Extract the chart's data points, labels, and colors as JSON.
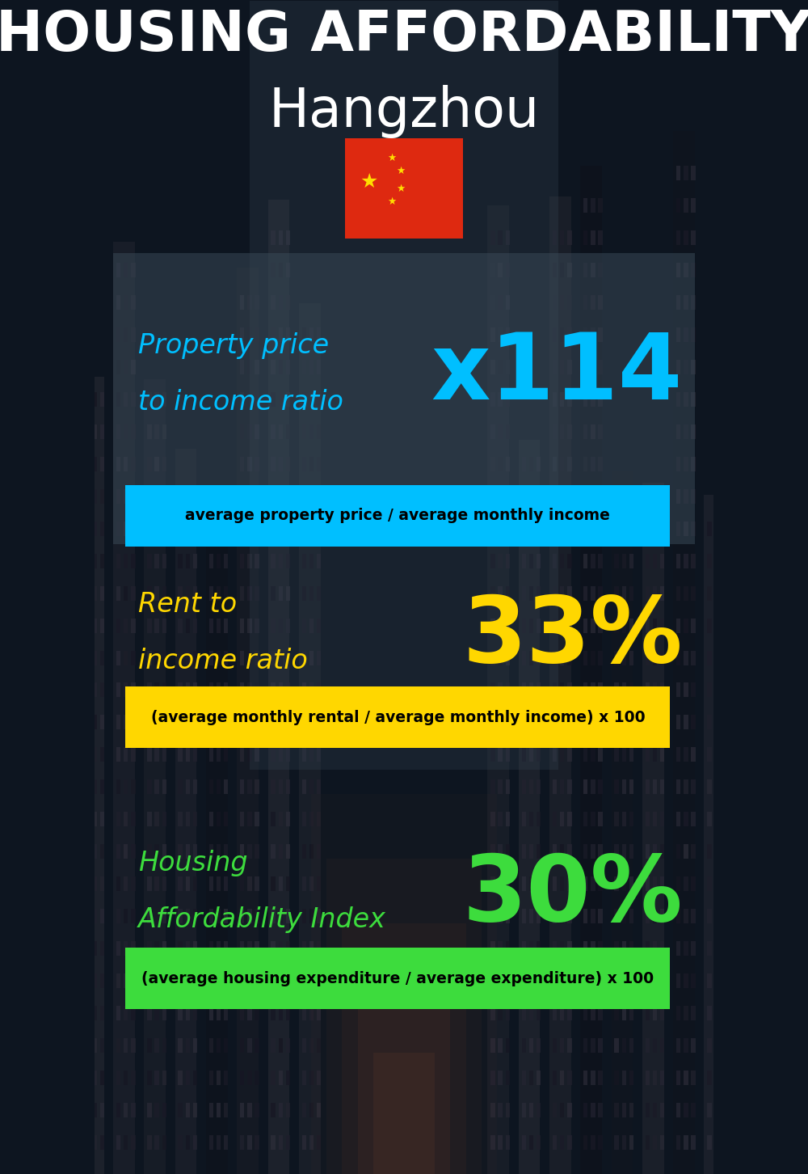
{
  "title_line1": "HOUSING AFFORDABILITY",
  "title_line2": "Hangzhou",
  "bg_color": "#0d1520",
  "section1_label_line1": "Property price",
  "section1_label_line2": "to income ratio",
  "section1_value": "x114",
  "section1_label_color": "#00bfff",
  "section1_value_color": "#00bfff",
  "section1_banner": "average property price / average monthly income",
  "section1_banner_bg": "#00bfff",
  "section2_label_line1": "Rent to",
  "section2_label_line2": "income ratio",
  "section2_value": "33%",
  "section2_label_color": "#ffd700",
  "section2_value_color": "#ffd700",
  "section2_banner": "(average monthly rental / average monthly income) x 100",
  "section2_banner_bg": "#ffd700",
  "section3_label_line1": "Housing",
  "section3_label_line2": "Affordability Index",
  "section3_value": "30%",
  "section3_label_color": "#3ddc3d",
  "section3_value_color": "#3ddc3d",
  "section3_banner": "(average housing expenditure / average expenditure) x 100",
  "section3_banner_bg": "#3ddc3d",
  "panel1_color": "#3a4a5a",
  "panel1_alpha": 0.55,
  "panel23_color": "#101820",
  "panel23_alpha": 0.35
}
